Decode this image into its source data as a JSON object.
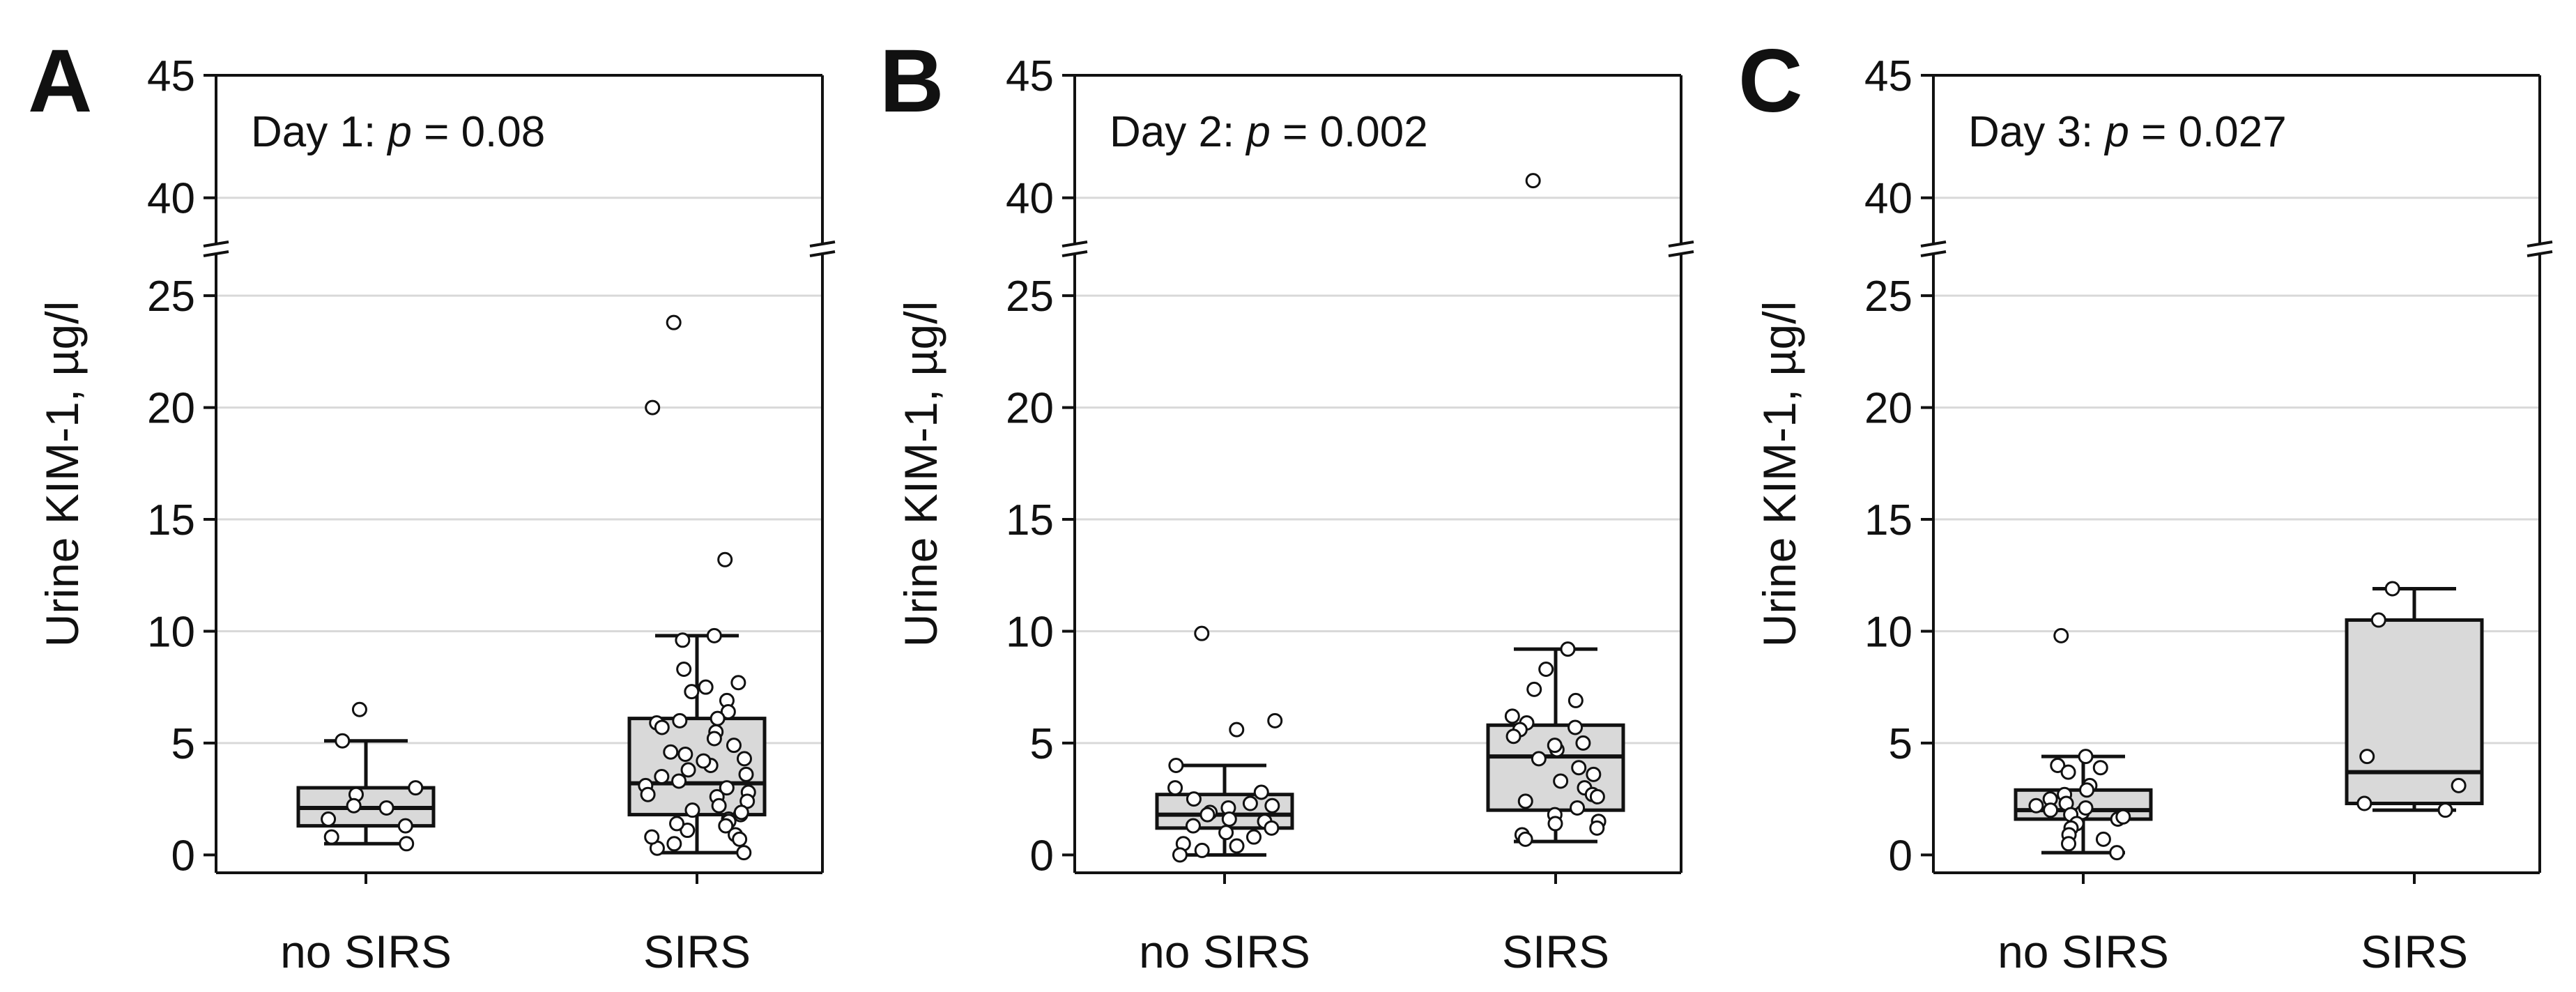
{
  "figure": {
    "colors": {
      "box_fill": "#d9d9d9",
      "stroke": "#111111",
      "grid": "#d9d9d9",
      "point_fill": "#ffffff"
    }
  },
  "chart_data": [
    {
      "type": "box",
      "panel_label": "A",
      "title": "Day 1: p = 0.08",
      "title_prefix": "Day 1: ",
      "title_italic": "p",
      "title_suffix": " = 0.08",
      "ylabel": "Urine KIM-1, µg/l",
      "categories": [
        "no SIRS",
        "SIRS"
      ],
      "y_ticks_lower": [
        0,
        5,
        10,
        15,
        20,
        25
      ],
      "y_ticks_upper": [
        40,
        45
      ],
      "axis_break": [
        27,
        38
      ],
      "ylim": [
        -0.8,
        45
      ],
      "boxes": [
        {
          "name": "no SIRS",
          "whisker_low": 0.5,
          "q1": 1.3,
          "median": 2.1,
          "q3": 3.0,
          "whisker_high": 5.1,
          "points": [
            5.1,
            6.5,
            3.0,
            2.7,
            2.1,
            1.6,
            1.3,
            0.8,
            0.5,
            2.2
          ]
        },
        {
          "name": "SIRS",
          "whisker_low": 0.1,
          "q1": 1.8,
          "median": 3.2,
          "q3": 6.1,
          "whisker_high": 9.8,
          "points": [
            23.8,
            20.0,
            13.2,
            9.8,
            9.6,
            8.3,
            7.7,
            7.5,
            7.3,
            6.9,
            6.4,
            6.1,
            5.9,
            5.5,
            5.2,
            4.9,
            4.6,
            4.3,
            4.0,
            3.8,
            3.5,
            3.3,
            3.0,
            2.8,
            2.6,
            2.4,
            2.2,
            2.0,
            1.8,
            1.6,
            1.5,
            1.3,
            1.1,
            0.9,
            0.7,
            0.5,
            0.3,
            0.1,
            3.1,
            4.5,
            6.0,
            5.7,
            2.7,
            1.9,
            1.4,
            0.8,
            3.6,
            4.2
          ]
        }
      ]
    },
    {
      "type": "box",
      "panel_label": "B",
      "title": "Day 2: p = 0.002",
      "title_prefix": "Day 2: ",
      "title_italic": "p",
      "title_suffix": " = 0.002",
      "ylabel": "Urine KIM-1, µg/l",
      "categories": [
        "no SIRS",
        "SIRS"
      ],
      "y_ticks_lower": [
        0,
        5,
        10,
        15,
        20,
        25
      ],
      "y_ticks_upper": [
        40,
        45
      ],
      "axis_break": [
        27,
        38
      ],
      "ylim": [
        -0.8,
        45
      ],
      "boxes": [
        {
          "name": "no SIRS",
          "whisker_low": 0.0,
          "q1": 1.2,
          "median": 1.8,
          "q3": 2.7,
          "whisker_high": 4.0,
          "points": [
            9.9,
            6.0,
            5.6,
            4.0,
            3.0,
            2.8,
            2.5,
            2.3,
            2.1,
            1.9,
            1.8,
            1.6,
            1.5,
            1.3,
            1.2,
            1.0,
            0.8,
            0.5,
            0.4,
            0.2,
            0.0,
            2.2
          ]
        },
        {
          "name": "SIRS",
          "whisker_low": 0.6,
          "q1": 2.0,
          "median": 4.4,
          "q3": 5.8,
          "whisker_high": 9.2,
          "points": [
            40.7,
            9.2,
            8.3,
            7.4,
            6.9,
            6.2,
            5.9,
            5.6,
            5.3,
            5.0,
            4.7,
            4.3,
            3.9,
            3.6,
            3.3,
            3.0,
            2.7,
            2.4,
            2.1,
            1.8,
            1.5,
            1.2,
            0.9,
            0.7,
            5.7,
            4.9,
            2.6,
            1.4
          ]
        }
      ]
    },
    {
      "type": "box",
      "panel_label": "C",
      "title": "Day 3: p = 0.027",
      "title_prefix": "Day 3: ",
      "title_italic": "p",
      "title_suffix": " = 0.027",
      "ylabel": "Urine KIM-1, µg/l",
      "categories": [
        "no SIRS",
        "SIRS"
      ],
      "y_ticks_lower": [
        0,
        5,
        10,
        15,
        20,
        25
      ],
      "y_ticks_upper": [
        40,
        45
      ],
      "axis_break": [
        27,
        38
      ],
      "ylim": [
        -0.8,
        45
      ],
      "boxes": [
        {
          "name": "no SIRS",
          "whisker_low": 0.1,
          "q1": 1.6,
          "median": 2.0,
          "q3": 2.9,
          "whisker_high": 4.4,
          "points": [
            9.8,
            4.4,
            4.0,
            3.9,
            3.7,
            3.1,
            2.9,
            2.7,
            2.5,
            2.3,
            2.2,
            2.0,
            1.9,
            1.8,
            1.6,
            1.4,
            1.2,
            0.9,
            0.7,
            0.5,
            0.1,
            2.1,
            1.7
          ]
        },
        {
          "name": "SIRS",
          "whisker_low": 2.0,
          "q1": 2.3,
          "median": 3.7,
          "q3": 10.5,
          "whisker_high": 11.9,
          "points": [
            11.9,
            10.5,
            4.4,
            3.1,
            2.3,
            2.0
          ]
        }
      ]
    }
  ]
}
